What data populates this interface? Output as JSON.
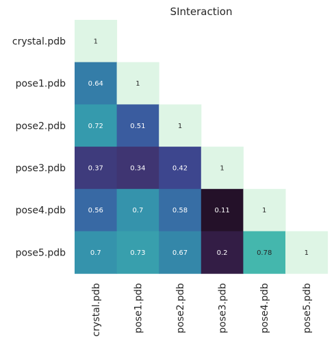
{
  "chart_data": {
    "type": "heatmap",
    "title": "SInteraction",
    "xlabel": "",
    "ylabel": "",
    "labels": [
      "crystal.pdb",
      "pose1.pdb",
      "pose2.pdb",
      "pose3.pdb",
      "pose4.pdb",
      "pose5.pdb"
    ],
    "matrix": [
      [
        1
      ],
      [
        0.64,
        1
      ],
      [
        0.72,
        0.51,
        1
      ],
      [
        0.37,
        0.34,
        0.42,
        1
      ],
      [
        0.56,
        0.7,
        0.58,
        0.11,
        1
      ],
      [
        0.7,
        0.73,
        0.67,
        0.2,
        0.78,
        1
      ]
    ],
    "mask": "upper-triangle",
    "colormap": "mako",
    "grid": false,
    "colors": {
      "text_light": "#ffffff",
      "text_dark": "#262626"
    }
  }
}
